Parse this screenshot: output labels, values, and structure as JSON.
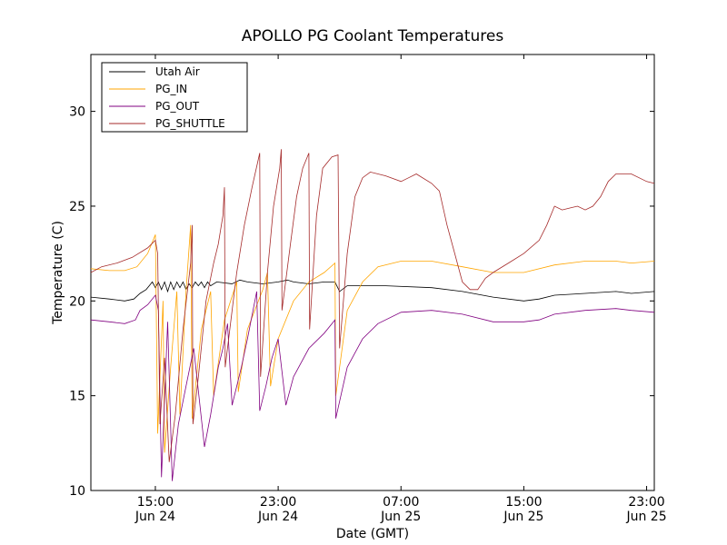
{
  "chart_data": {
    "type": "line",
    "title": "APOLLO PG Coolant Temperatures",
    "xlabel": "Date (GMT)",
    "ylabel": "Temperature (C)",
    "x_unit": "hours since Jun 24 00:00 GMT",
    "xlim": [
      10.8,
      47.5
    ],
    "ylim": [
      10,
      33
    ],
    "yticks": [
      10,
      15,
      20,
      25,
      30
    ],
    "xticks": [
      {
        "x": 15,
        "line1": "15:00",
        "line2": "Jun 24"
      },
      {
        "x": 23,
        "line1": "23:00",
        "line2": "Jun 24"
      },
      {
        "x": 31,
        "line1": "07:00",
        "line2": "Jun 25"
      },
      {
        "x": 39,
        "line1": "15:00",
        "line2": "Jun 25"
      },
      {
        "x": 47,
        "line1": "23:00",
        "line2": "Jun 25"
      }
    ],
    "legend_position": "top-left",
    "series": [
      {
        "name": "Utah Air",
        "color": "#000000",
        "points": [
          [
            10.8,
            20.2
          ],
          [
            12,
            20.1
          ],
          [
            13,
            20.0
          ],
          [
            13.6,
            20.1
          ],
          [
            14,
            20.4
          ],
          [
            14.4,
            20.6
          ],
          [
            14.6,
            20.8
          ],
          [
            14.8,
            21.0
          ],
          [
            15,
            20.7
          ],
          [
            15.2,
            21.0
          ],
          [
            15.4,
            20.6
          ],
          [
            15.6,
            21.0
          ],
          [
            15.8,
            20.5
          ],
          [
            16,
            21.0
          ],
          [
            16.2,
            20.6
          ],
          [
            16.4,
            21.0
          ],
          [
            16.6,
            20.7
          ],
          [
            16.8,
            21.0
          ],
          [
            17,
            20.6
          ],
          [
            17.2,
            20.9
          ],
          [
            17.4,
            20.7
          ],
          [
            17.6,
            21.0
          ],
          [
            17.8,
            20.8
          ],
          [
            18,
            21.0
          ],
          [
            18.2,
            20.7
          ],
          [
            18.4,
            21.0
          ],
          [
            18.6,
            20.8
          ],
          [
            19,
            21.0
          ],
          [
            20,
            20.9
          ],
          [
            20.5,
            21.1
          ],
          [
            21,
            21.0
          ],
          [
            22,
            20.9
          ],
          [
            23,
            21.0
          ],
          [
            23.6,
            21.1
          ],
          [
            24,
            21.0
          ],
          [
            25,
            20.9
          ],
          [
            26,
            21.0
          ],
          [
            26.7,
            21.0
          ],
          [
            27,
            20.5
          ],
          [
            27.5,
            20.8
          ],
          [
            28,
            20.8
          ],
          [
            30,
            20.8
          ],
          [
            33,
            20.7
          ],
          [
            35,
            20.5
          ],
          [
            37,
            20.2
          ],
          [
            39,
            20.0
          ],
          [
            40,
            20.1
          ],
          [
            41,
            20.3
          ],
          [
            43,
            20.4
          ],
          [
            45,
            20.5
          ],
          [
            46,
            20.4
          ],
          [
            47.5,
            20.5
          ]
        ]
      },
      {
        "name": "PG_IN",
        "color": "#ffa500",
        "points": [
          [
            10.8,
            21.7
          ],
          [
            12,
            21.6
          ],
          [
            13,
            21.6
          ],
          [
            13.8,
            21.8
          ],
          [
            14.5,
            22.5
          ],
          [
            15,
            23.5
          ],
          [
            15.15,
            13.0
          ],
          [
            15.5,
            20.0
          ],
          [
            15.6,
            12.0
          ],
          [
            16,
            16.5
          ],
          [
            16.4,
            20.5
          ],
          [
            16.6,
            14.0
          ],
          [
            17,
            20.5
          ],
          [
            17.3,
            24.0
          ],
          [
            17.4,
            13.8
          ],
          [
            18,
            18.5
          ],
          [
            18.6,
            20.5
          ],
          [
            18.8,
            15.0
          ],
          [
            19.5,
            19.0
          ],
          [
            20.3,
            21.0
          ],
          [
            20.4,
            15.2
          ],
          [
            21,
            18.5
          ],
          [
            22,
            20.6
          ],
          [
            22.3,
            21.5
          ],
          [
            22.5,
            15.5
          ],
          [
            23,
            18.0
          ],
          [
            24,
            20.0
          ],
          [
            25,
            21.0
          ],
          [
            26,
            21.5
          ],
          [
            26.7,
            22.0
          ],
          [
            26.75,
            15.0
          ],
          [
            27.5,
            19.5
          ],
          [
            28.5,
            21.0
          ],
          [
            29.5,
            21.8
          ],
          [
            31,
            22.1
          ],
          [
            33,
            22.1
          ],
          [
            35,
            21.8
          ],
          [
            37,
            21.5
          ],
          [
            39,
            21.5
          ],
          [
            41,
            21.9
          ],
          [
            43,
            22.1
          ],
          [
            45,
            22.1
          ],
          [
            46,
            22.0
          ],
          [
            47.5,
            22.1
          ]
        ]
      },
      {
        "name": "PG_OUT",
        "color": "#800080",
        "points": [
          [
            10.8,
            19.0
          ],
          [
            12,
            18.9
          ],
          [
            13,
            18.8
          ],
          [
            13.7,
            19.0
          ],
          [
            14,
            19.5
          ],
          [
            14.5,
            19.8
          ],
          [
            15,
            20.3
          ],
          [
            15.2,
            19.5
          ],
          [
            15.4,
            10.7
          ],
          [
            15.8,
            18.9
          ],
          [
            16.1,
            10.5
          ],
          [
            16.5,
            13.5
          ],
          [
            17,
            15.5
          ],
          [
            17.5,
            17.5
          ],
          [
            18.2,
            12.3
          ],
          [
            18.6,
            14.0
          ],
          [
            19.1,
            16.5
          ],
          [
            19.4,
            17.5
          ],
          [
            19.7,
            18.8
          ],
          [
            20,
            14.5
          ],
          [
            20.6,
            16.5
          ],
          [
            21,
            18.0
          ],
          [
            21.6,
            20.5
          ],
          [
            21.8,
            14.2
          ],
          [
            22.2,
            15.5
          ],
          [
            22.6,
            17.0
          ],
          [
            23,
            18.0
          ],
          [
            23.5,
            14.5
          ],
          [
            24,
            16.0
          ],
          [
            25,
            17.5
          ],
          [
            26,
            18.3
          ],
          [
            26.7,
            19.0
          ],
          [
            26.75,
            13.8
          ],
          [
            27.5,
            16.5
          ],
          [
            28.5,
            18.0
          ],
          [
            29.5,
            18.8
          ],
          [
            31,
            19.4
          ],
          [
            33,
            19.5
          ],
          [
            35,
            19.3
          ],
          [
            37,
            18.9
          ],
          [
            39,
            18.9
          ],
          [
            40,
            19.0
          ],
          [
            41,
            19.3
          ],
          [
            43,
            19.5
          ],
          [
            45,
            19.6
          ],
          [
            46,
            19.5
          ],
          [
            47.5,
            19.4
          ]
        ]
      },
      {
        "name": "PG_SHUTTLE",
        "color": "#a52a2a",
        "points": [
          [
            10.8,
            21.5
          ],
          [
            11.5,
            21.8
          ],
          [
            12.5,
            22.0
          ],
          [
            13.5,
            22.3
          ],
          [
            14.5,
            22.8
          ],
          [
            15,
            23.2
          ],
          [
            15.15,
            22.5
          ],
          [
            15.3,
            13.5
          ],
          [
            15.6,
            17.0
          ],
          [
            15.9,
            11.5
          ],
          [
            16.3,
            14.0
          ],
          [
            16.8,
            18.5
          ],
          [
            17.3,
            22.0
          ],
          [
            17.4,
            24.0
          ],
          [
            17.45,
            13.5
          ],
          [
            17.8,
            16.0
          ],
          [
            18.3,
            20.0
          ],
          [
            18.8,
            22.0
          ],
          [
            19.1,
            23.0
          ],
          [
            19.4,
            24.5
          ],
          [
            19.5,
            26.0
          ],
          [
            19.55,
            16.5
          ],
          [
            20.3,
            21.5
          ],
          [
            20.8,
            24.0
          ],
          [
            21.3,
            26.0
          ],
          [
            21.8,
            27.8
          ],
          [
            21.85,
            16.0
          ],
          [
            22.3,
            21.5
          ],
          [
            22.7,
            25.0
          ],
          [
            23.1,
            27.0
          ],
          [
            23.2,
            28.0
          ],
          [
            23.25,
            19.5
          ],
          [
            23.8,
            23.0
          ],
          [
            24.2,
            25.5
          ],
          [
            24.6,
            27.0
          ],
          [
            25.0,
            27.8
          ],
          [
            25.05,
            18.5
          ],
          [
            25.5,
            24.5
          ],
          [
            25.9,
            27.0
          ],
          [
            26.5,
            27.6
          ],
          [
            26.9,
            27.7
          ],
          [
            27.0,
            17.5
          ],
          [
            27.5,
            22.5
          ],
          [
            28,
            25.5
          ],
          [
            28.5,
            26.5
          ],
          [
            29,
            26.8
          ],
          [
            30,
            26.6
          ],
          [
            31,
            26.3
          ],
          [
            31.5,
            26.5
          ],
          [
            32,
            26.7
          ],
          [
            33,
            26.2
          ],
          [
            33.5,
            25.8
          ],
          [
            34,
            24.0
          ],
          [
            34.5,
            22.5
          ],
          [
            35,
            21.0
          ],
          [
            35.5,
            20.6
          ],
          [
            36,
            20.6
          ],
          [
            36.5,
            21.2
          ],
          [
            37,
            21.5
          ],
          [
            38,
            22.0
          ],
          [
            39,
            22.5
          ],
          [
            40,
            23.2
          ],
          [
            40.5,
            24.0
          ],
          [
            41,
            25.0
          ],
          [
            41.5,
            24.8
          ],
          [
            42,
            24.9
          ],
          [
            42.5,
            25.0
          ],
          [
            43,
            24.8
          ],
          [
            43.5,
            25.0
          ],
          [
            44,
            25.5
          ],
          [
            44.5,
            26.3
          ],
          [
            45,
            26.7
          ],
          [
            46,
            26.7
          ],
          [
            47,
            26.3
          ],
          [
            47.5,
            26.2
          ]
        ]
      }
    ]
  }
}
